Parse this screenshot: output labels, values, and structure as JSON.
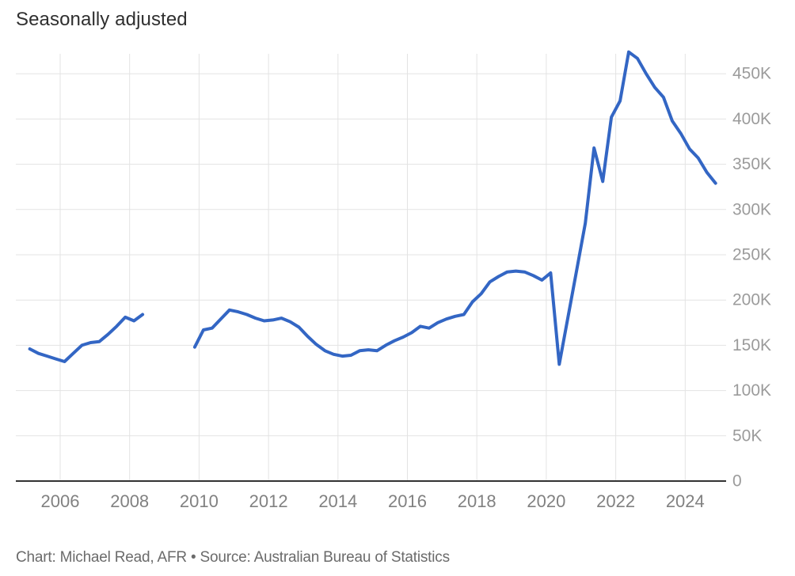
{
  "header": {
    "title": "Seasonally adjusted"
  },
  "footer": {
    "byline": "Chart: Michael Read, AFR • Source: Australian Bureau of Statistics"
  },
  "colors": {
    "line": "#3366c4",
    "grid": "#e3e3e3",
    "axis_baseline": "#333333",
    "y_tick_label": "#9b9b9b",
    "x_tick_label": "#818181",
    "title_text": "#2f2f2f",
    "byline_text": "#6b6b6b",
    "background": "#ffffff"
  },
  "chart_data": {
    "type": "line",
    "title": "Seasonally adjusted",
    "source_text": "Source: Australian Bureau of Statistics",
    "credit_text": "Chart: Michael Read, AFR",
    "unit_suffix": "K",
    "values_are": "thousands, as labelled on right-hand axis (K)",
    "legend": "none",
    "grid": true,
    "y_axis": {
      "side": "right",
      "range": [
        0,
        472
      ],
      "ticks": [
        {
          "value": 0,
          "label": "0"
        },
        {
          "value": 50,
          "label": "50K"
        },
        {
          "value": 100,
          "label": "100K"
        },
        {
          "value": 150,
          "label": "150K"
        },
        {
          "value": 200,
          "label": "200K"
        },
        {
          "value": 250,
          "label": "250K"
        },
        {
          "value": 300,
          "label": "300K"
        },
        {
          "value": 350,
          "label": "350K"
        },
        {
          "value": 400,
          "label": "400K"
        },
        {
          "value": 450,
          "label": "450K"
        }
      ]
    },
    "x_axis": {
      "range_years": [
        2004.7,
        2025.2
      ],
      "tick_years": [
        2006,
        2008,
        2010,
        2012,
        2014,
        2016,
        2018,
        2020,
        2022,
        2024
      ]
    },
    "series": [
      {
        "name": "Seasonally adjusted",
        "color": "#3366c4",
        "note": "line breaks between May 2008 and Nov 2009 (no data)",
        "segments": [
          [
            {
              "date": "2005-02",
              "value": 146
            },
            {
              "date": "2005-05",
              "value": 141
            },
            {
              "date": "2005-08",
              "value": 138
            },
            {
              "date": "2005-11",
              "value": 135
            },
            {
              "date": "2006-02",
              "value": 132
            },
            {
              "date": "2006-05",
              "value": 141
            },
            {
              "date": "2006-08",
              "value": 150
            },
            {
              "date": "2006-11",
              "value": 153
            },
            {
              "date": "2007-02",
              "value": 154
            },
            {
              "date": "2007-05",
              "value": 162
            },
            {
              "date": "2007-08",
              "value": 171
            },
            {
              "date": "2007-11",
              "value": 181
            },
            {
              "date": "2008-02",
              "value": 177
            },
            {
              "date": "2008-05",
              "value": 184
            }
          ],
          [
            {
              "date": "2009-11",
              "value": 148
            },
            {
              "date": "2010-02",
              "value": 167
            },
            {
              "date": "2010-05",
              "value": 169
            },
            {
              "date": "2010-08",
              "value": 179
            },
            {
              "date": "2010-11",
              "value": 189
            },
            {
              "date": "2011-02",
              "value": 187
            },
            {
              "date": "2011-05",
              "value": 184
            },
            {
              "date": "2011-08",
              "value": 180
            },
            {
              "date": "2011-11",
              "value": 177
            },
            {
              "date": "2012-02",
              "value": 178
            },
            {
              "date": "2012-05",
              "value": 180
            },
            {
              "date": "2012-08",
              "value": 176
            },
            {
              "date": "2012-11",
              "value": 170
            },
            {
              "date": "2013-02",
              "value": 160
            },
            {
              "date": "2013-05",
              "value": 151
            },
            {
              "date": "2013-08",
              "value": 144
            },
            {
              "date": "2013-11",
              "value": 140
            },
            {
              "date": "2014-02",
              "value": 138
            },
            {
              "date": "2014-05",
              "value": 139
            },
            {
              "date": "2014-08",
              "value": 144
            },
            {
              "date": "2014-11",
              "value": 145
            },
            {
              "date": "2015-02",
              "value": 144
            },
            {
              "date": "2015-05",
              "value": 150
            },
            {
              "date": "2015-08",
              "value": 155
            },
            {
              "date": "2015-11",
              "value": 159
            },
            {
              "date": "2016-02",
              "value": 164
            },
            {
              "date": "2016-05",
              "value": 171
            },
            {
              "date": "2016-08",
              "value": 169
            },
            {
              "date": "2016-11",
              "value": 175
            },
            {
              "date": "2017-02",
              "value": 179
            },
            {
              "date": "2017-05",
              "value": 182
            },
            {
              "date": "2017-08",
              "value": 184
            },
            {
              "date": "2017-11",
              "value": 198
            },
            {
              "date": "2018-02",
              "value": 207
            },
            {
              "date": "2018-05",
              "value": 220
            },
            {
              "date": "2018-08",
              "value": 226
            },
            {
              "date": "2018-11",
              "value": 231
            },
            {
              "date": "2019-02",
              "value": 232
            },
            {
              "date": "2019-05",
              "value": 231
            },
            {
              "date": "2019-08",
              "value": 227
            },
            {
              "date": "2019-11",
              "value": 222
            },
            {
              "date": "2020-02",
              "value": 230
            },
            {
              "date": "2020-05",
              "value": 129
            },
            {
              "date": "2020-08",
              "value": 181
            },
            {
              "date": "2020-11",
              "value": 233
            },
            {
              "date": "2021-02",
              "value": 285
            },
            {
              "date": "2021-05",
              "value": 368
            },
            {
              "date": "2021-08",
              "value": 331
            },
            {
              "date": "2021-11",
              "value": 402
            },
            {
              "date": "2022-02",
              "value": 420
            },
            {
              "date": "2022-05",
              "value": 474
            },
            {
              "date": "2022-08",
              "value": 467
            },
            {
              "date": "2022-11",
              "value": 450
            },
            {
              "date": "2023-02",
              "value": 435
            },
            {
              "date": "2023-05",
              "value": 424
            },
            {
              "date": "2023-08",
              "value": 398
            },
            {
              "date": "2023-11",
              "value": 384
            },
            {
              "date": "2024-02",
              "value": 367
            },
            {
              "date": "2024-05",
              "value": 357
            },
            {
              "date": "2024-08",
              "value": 341
            },
            {
              "date": "2024-11",
              "value": 329
            }
          ]
        ]
      }
    ]
  }
}
